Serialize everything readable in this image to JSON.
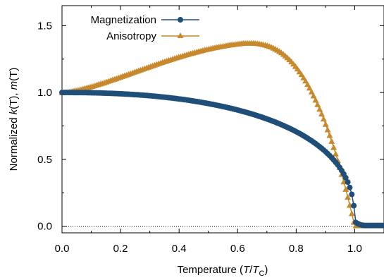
{
  "chart_data": {
    "type": "line",
    "xlabel": {
      "prefix": "Temperature (",
      "var": "T",
      "slash": "/",
      "sub_var": "T",
      "sub": "C",
      "suffix": ")"
    },
    "ylabel": {
      "prefix": "Normalized ",
      "k": "k",
      "k_arg": "(T), ",
      "m": "m",
      "m_arg": "(T)"
    },
    "xlim": [
      0.0,
      1.1
    ],
    "ylim": [
      -0.05,
      1.65
    ],
    "xticks": [
      "0.0",
      "0.2",
      "0.4",
      "0.6",
      "0.8",
      "1.0"
    ],
    "xtick_values": [
      0.0,
      0.2,
      0.4,
      0.6,
      0.8,
      1.0
    ],
    "yticks": [
      "0.0",
      "0.5",
      "1.0",
      "1.5"
    ],
    "ytick_values": [
      0.0,
      0.5,
      1.0,
      1.5
    ],
    "grid": false,
    "reference_line": {
      "y": 0.0,
      "style": "dotted"
    },
    "legend_position": "top-left",
    "colors": {
      "magnetization": "#1f4e79",
      "anisotropy": "#c8892c"
    },
    "series": [
      {
        "name": "Magnetization",
        "marker": "circle",
        "color": "#1f4e79",
        "model": "mean-field m(T), x: 0 to 1.1"
      },
      {
        "name": "Anisotropy",
        "marker": "triangle",
        "color": "#c8892c",
        "model": "k(T), peak 1.37 near T/Tc = 0.63, x: 0 to 1.1"
      }
    ]
  }
}
